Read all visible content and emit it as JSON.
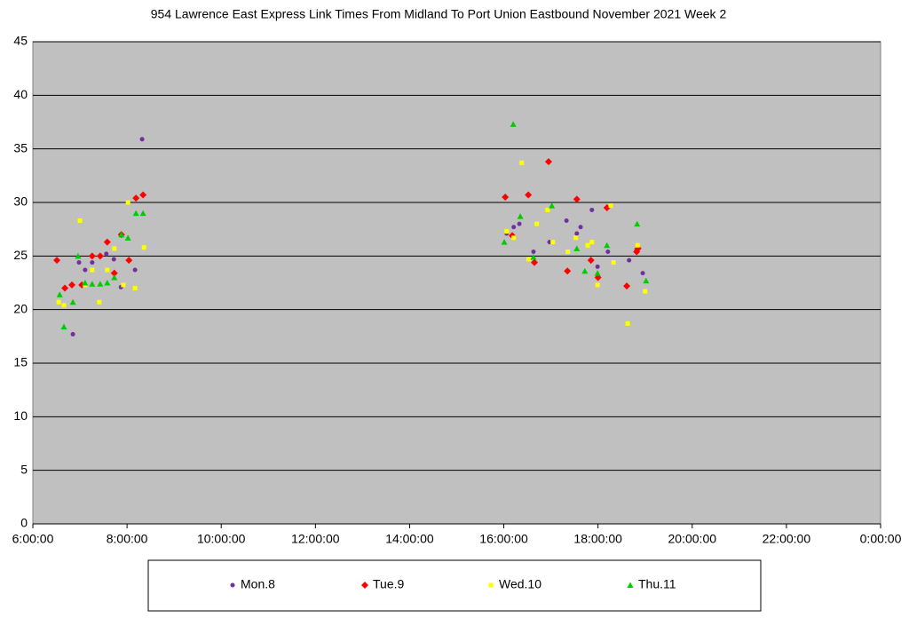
{
  "chart_data": {
    "type": "scatter",
    "title": "954 Lawrence East Express Link Times From Midland To Port Union Eastbound November 2021  Week 2",
    "xlim": [
      6,
      24
    ],
    "xticks": [
      {
        "value": 6,
        "label": "6:00:00"
      },
      {
        "value": 8,
        "label": "8:00:00"
      },
      {
        "value": 10,
        "label": "10:00:00"
      },
      {
        "value": 12,
        "label": "12:00:00"
      },
      {
        "value": 14,
        "label": "14:00:00"
      },
      {
        "value": 16,
        "label": "16:00:00"
      },
      {
        "value": 18,
        "label": "18:00:00"
      },
      {
        "value": 20,
        "label": "20:00:00"
      },
      {
        "value": 22,
        "label": "22:00:00"
      },
      {
        "value": 24,
        "label": "0:00:00"
      }
    ],
    "ylim": [
      0,
      45
    ],
    "yticks": [
      0,
      5,
      10,
      15,
      20,
      25,
      30,
      35,
      40,
      45
    ],
    "grid": true,
    "legend": "bottom",
    "series": [
      {
        "name": "Mon.8",
        "color": "#7030a0",
        "marker": "circle",
        "x": [
          6.85,
          6.98,
          7.11,
          7.26,
          7.56,
          7.72,
          7.87,
          7.87,
          8.17,
          8.32,
          16.06,
          16.21,
          16.33,
          16.63,
          16.97,
          17.33,
          17.55,
          17.63,
          17.87,
          17.99,
          18.21,
          18.66,
          18.82,
          18.95
        ],
        "values": [
          17.7,
          24.4,
          23.7,
          24.4,
          25.2,
          24.7,
          22.1,
          27.0,
          23.7,
          35.9,
          27.1,
          27.7,
          28.0,
          25.4,
          26.3,
          28.3,
          27.1,
          27.7,
          29.3,
          24.0,
          25.4,
          24.6,
          25.6,
          23.4
        ]
      },
      {
        "name": "Tue.9",
        "color": "#ff0000",
        "marker": "diamond",
        "x": [
          6.51,
          6.68,
          6.83,
          7.04,
          7.26,
          7.43,
          7.58,
          7.73,
          7.88,
          8.04,
          8.19,
          8.34,
          16.03,
          16.18,
          16.52,
          16.65,
          16.95,
          17.35,
          17.55,
          17.85,
          18.0,
          18.19,
          18.61,
          18.82,
          18.85
        ],
        "values": [
          24.6,
          22.0,
          22.3,
          22.3,
          25.0,
          25.0,
          26.3,
          23.4,
          27.0,
          24.6,
          30.4,
          30.7,
          30.5,
          26.9,
          30.7,
          24.4,
          33.8,
          23.6,
          30.3,
          24.6,
          23.0,
          29.5,
          22.2,
          25.4,
          25.7
        ]
      },
      {
        "name": "Wed.10",
        "color": "#ffff00",
        "marker": "square",
        "x": [
          6.55,
          6.66,
          7.0,
          7.11,
          7.26,
          7.41,
          7.58,
          7.73,
          7.92,
          8.02,
          8.17,
          8.36,
          16.06,
          16.21,
          16.38,
          16.53,
          16.7,
          16.93,
          17.04,
          17.36,
          17.53,
          17.78,
          17.87,
          17.99,
          18.27,
          18.33,
          18.63,
          18.84,
          19.0
        ],
        "values": [
          20.7,
          20.4,
          28.3,
          22.3,
          23.7,
          20.7,
          23.7,
          25.7,
          22.3,
          30.0,
          22.0,
          25.8,
          27.3,
          26.7,
          33.7,
          24.7,
          28.0,
          29.3,
          26.3,
          25.4,
          26.7,
          26.0,
          26.3,
          22.3,
          29.7,
          24.4,
          18.7,
          26.0,
          21.7
        ]
      },
      {
        "name": "Thu.11",
        "color": "#00cc00",
        "marker": "triangle",
        "x": [
          6.57,
          6.66,
          6.85,
          6.96,
          7.11,
          7.26,
          7.43,
          7.58,
          7.73,
          7.88,
          8.02,
          8.19,
          8.34,
          16.01,
          16.2,
          16.35,
          16.63,
          17.02,
          17.55,
          17.72,
          17.99,
          18.19,
          18.83,
          19.02
        ],
        "values": [
          21.4,
          18.4,
          20.7,
          25.0,
          22.5,
          22.4,
          22.4,
          22.5,
          23.0,
          27.0,
          26.7,
          29.0,
          29.0,
          26.3,
          37.3,
          28.7,
          24.9,
          29.7,
          25.7,
          23.6,
          23.4,
          26.0,
          28.0,
          22.7
        ]
      }
    ]
  }
}
